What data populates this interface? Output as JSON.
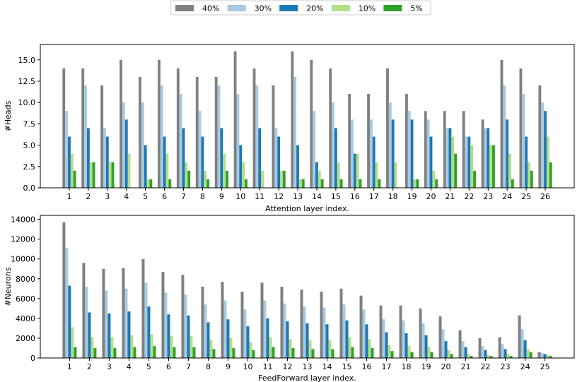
{
  "legend": {
    "entries": [
      {
        "label": "40%",
        "color": "#808080"
      },
      {
        "label": "30%",
        "color": "#a6cbe3"
      },
      {
        "label": "20%",
        "color": "#1f78b4"
      },
      {
        "label": "10%",
        "color": "#b2df8a"
      },
      {
        "label": "5%",
        "color": "#33a02c"
      }
    ]
  },
  "chart_data": [
    {
      "type": "bar",
      "xlabel": "Attention layer index.",
      "ylabel": "#Heads",
      "ylim": [
        0,
        16.8
      ],
      "yticks": [
        0,
        2.5,
        5,
        7.5,
        10,
        12.5,
        15
      ],
      "ytick_labels": [
        "0.0",
        "2.5",
        "5.0",
        "7.5",
        "10.0",
        "12.5",
        "15.0"
      ],
      "categories": [
        "1",
        "2",
        "3",
        "4",
        "5",
        "6",
        "7",
        "8",
        "9",
        "10",
        "11",
        "12",
        "13",
        "14",
        "15",
        "16",
        "17",
        "18",
        "19",
        "20",
        "21",
        "22",
        "23",
        "24",
        "25",
        "26"
      ],
      "series": [
        {
          "name": "40%",
          "values": [
            14,
            14,
            12,
            15,
            13,
            15,
            14,
            13,
            13,
            16,
            14,
            12,
            16,
            15,
            14,
            11,
            11,
            14,
            11,
            9,
            9,
            9,
            8,
            15,
            14,
            12
          ]
        },
        {
          "name": "30%",
          "values": [
            9,
            12,
            7,
            10,
            10,
            12,
            11,
            9,
            12,
            11,
            12,
            7,
            13,
            9,
            10,
            8,
            8,
            10,
            9,
            8,
            7,
            6,
            7,
            12,
            11,
            10
          ]
        },
        {
          "name": "20%",
          "values": [
            6,
            7,
            6,
            8,
            5,
            6,
            7,
            6,
            7,
            5,
            7,
            6,
            5,
            3,
            7,
            4,
            6,
            8,
            8,
            6,
            7,
            6,
            7,
            8,
            6,
            9
          ]
        },
        {
          "name": "10%",
          "values": [
            4,
            3,
            3,
            4,
            1,
            4,
            3,
            2,
            4,
            3,
            2,
            2,
            1,
            2,
            3,
            4,
            3,
            3,
            1,
            2,
            6,
            5,
            5,
            4,
            3,
            6
          ]
        },
        {
          "name": "5%",
          "values": [
            2,
            3,
            3,
            0,
            1,
            1,
            2,
            1,
            2,
            1,
            0,
            2,
            1,
            1,
            1,
            1,
            1,
            0,
            1,
            1,
            4,
            2,
            5,
            1,
            2,
            3
          ]
        }
      ]
    },
    {
      "type": "bar",
      "xlabel": "FeedForward layer index.",
      "ylabel": "#Neurons",
      "ylim": [
        0,
        14400
      ],
      "yticks": [
        0,
        2000,
        4000,
        6000,
        8000,
        10000,
        12000,
        14000
      ],
      "ytick_labels": [
        "0",
        "2000",
        "4000",
        "6000",
        "8000",
        "10000",
        "12000",
        "14000"
      ],
      "categories": [
        "1",
        "2",
        "3",
        "4",
        "5",
        "6",
        "7",
        "8",
        "9",
        "10",
        "11",
        "12",
        "13",
        "14",
        "15",
        "16",
        "17",
        "18",
        "19",
        "20",
        "21",
        "22",
        "23",
        "24",
        "25"
      ],
      "series": [
        {
          "name": "40%",
          "values": [
            13700,
            9600,
            9000,
            9100,
            10000,
            8700,
            8400,
            7200,
            7700,
            6700,
            7600,
            7200,
            6900,
            6700,
            7000,
            6300,
            5300,
            5300,
            5000,
            4200,
            2800,
            2000,
            2100,
            4300,
            600
          ]
        },
        {
          "name": "30%",
          "values": [
            11100,
            7200,
            6800,
            7000,
            7600,
            6600,
            6400,
            5400,
            5800,
            4900,
            5800,
            5500,
            5200,
            5100,
            5400,
            4900,
            3900,
            3800,
            3500,
            2900,
            1700,
            1200,
            1400,
            2900,
            500
          ]
        },
        {
          "name": "20%",
          "values": [
            7300,
            4600,
            4500,
            4700,
            5200,
            4400,
            4300,
            3600,
            3900,
            3200,
            4000,
            3700,
            3500,
            3400,
            3800,
            3400,
            2600,
            2500,
            2300,
            1700,
            1100,
            800,
            900,
            1800,
            400
          ]
        },
        {
          "name": "10%",
          "values": [
            3100,
            2100,
            2100,
            2300,
            2400,
            2200,
            2200,
            1800,
            2000,
            1600,
            2100,
            1900,
            1800,
            1800,
            2100,
            1900,
            1300,
            1200,
            1100,
            800,
            400,
            300,
            400,
            900,
            300
          ]
        },
        {
          "name": "5%",
          "values": [
            1100,
            1000,
            1000,
            1100,
            1200,
            1100,
            1100,
            900,
            1000,
            800,
            1100,
            1000,
            900,
            900,
            1100,
            1000,
            700,
            600,
            600,
            400,
            200,
            200,
            200,
            600,
            200
          ]
        }
      ]
    }
  ]
}
